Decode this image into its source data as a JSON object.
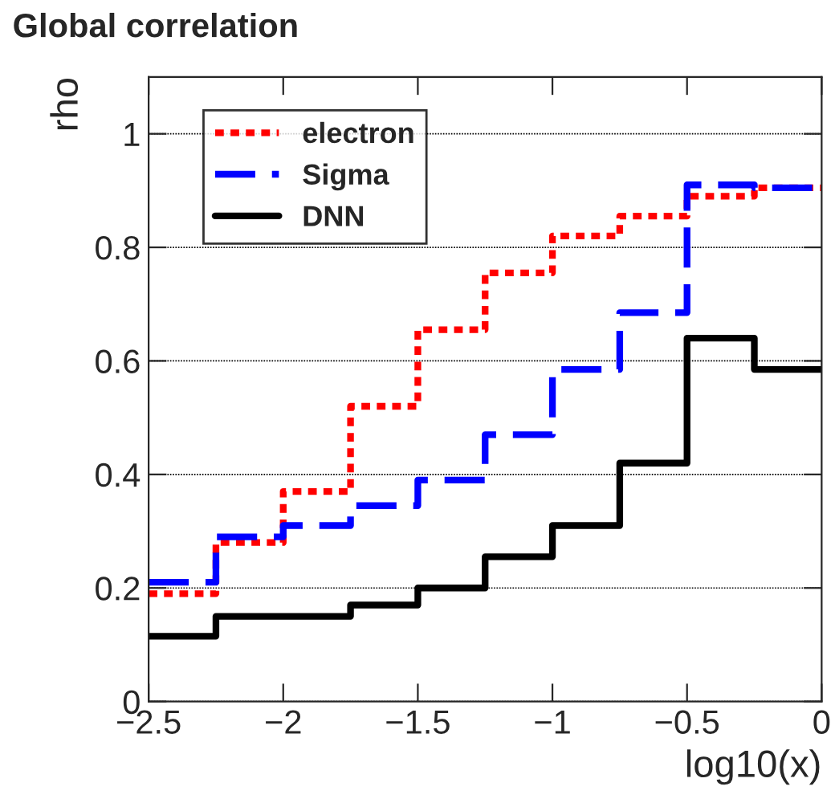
{
  "chart_data": {
    "type": "step",
    "title": "Global correlation",
    "xlabel": "log10(x)",
    "ylabel": "rho",
    "x": [
      -2.5,
      -2.25,
      -2.0,
      -1.75,
      -1.5,
      -1.25,
      -1.0,
      -0.75,
      -0.5,
      -0.25,
      0
    ],
    "series": [
      {
        "name": "electron",
        "color": "#ff0000",
        "line_style": "dotted",
        "values": [
          0.19,
          0.28,
          0.37,
          0.52,
          0.655,
          0.755,
          0.82,
          0.855,
          0.89,
          0.905,
          0.905
        ]
      },
      {
        "name": "Sigma",
        "color": "#0000ff",
        "line_style": "dashed",
        "values": [
          0.21,
          0.29,
          0.31,
          0.345,
          0.39,
          0.47,
          0.585,
          0.685,
          0.91,
          0.905,
          0.905
        ]
      },
      {
        "name": "DNN",
        "color": "#000000",
        "line_style": "solid",
        "values": [
          0.115,
          0.15,
          0.15,
          0.17,
          0.2,
          0.255,
          0.31,
          0.42,
          0.64,
          0.585,
          0.585
        ]
      }
    ],
    "xlim": [
      -2.5,
      0
    ],
    "ylim": [
      0,
      1.1
    ],
    "xticks": [
      {
        "value": -2.5,
        "label": "−2.5"
      },
      {
        "value": -2,
        "label": "−2"
      },
      {
        "value": -1.5,
        "label": "−1.5"
      },
      {
        "value": -1,
        "label": "−1"
      },
      {
        "value": -0.5,
        "label": "−0.5"
      },
      0
    ],
    "yticks": [
      0,
      0.2,
      0.4,
      0.6,
      0.8,
      1
    ],
    "grid": "y",
    "legend": "top left"
  }
}
